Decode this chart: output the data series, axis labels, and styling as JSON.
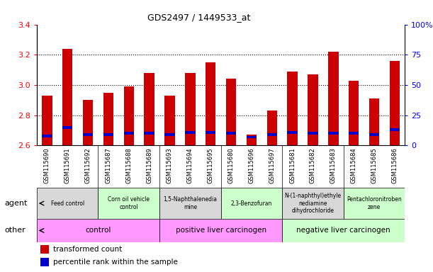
{
  "title": "GDS2497 / 1449533_at",
  "samples": [
    "GSM115690",
    "GSM115691",
    "GSM115692",
    "GSM115687",
    "GSM115688",
    "GSM115689",
    "GSM115693",
    "GSM115694",
    "GSM115695",
    "GSM115680",
    "GSM115696",
    "GSM115697",
    "GSM115681",
    "GSM115682",
    "GSM115683",
    "GSM115684",
    "GSM115685",
    "GSM115686"
  ],
  "transformed_count": [
    2.93,
    3.24,
    2.9,
    2.95,
    2.99,
    3.08,
    2.93,
    3.08,
    3.15,
    3.04,
    2.67,
    2.83,
    3.09,
    3.07,
    3.22,
    3.03,
    2.91,
    3.16
  ],
  "percentile_rank_pct": [
    8,
    15,
    9,
    9,
    10,
    10,
    9,
    11,
    11,
    10,
    7,
    9,
    11,
    10,
    10,
    10,
    9,
    13
  ],
  "ymin": 2.6,
  "ymax": 3.4,
  "yticks_left": [
    2.6,
    2.8,
    3.0,
    3.2,
    3.4
  ],
  "yticks_right": [
    0,
    25,
    50,
    75,
    100
  ],
  "bar_color": "#cc0000",
  "percentile_color": "#0000cc",
  "agent_groups": [
    {
      "label": "Feed control",
      "start": 0,
      "end": 3,
      "color": "#d8d8d8"
    },
    {
      "label": "Corn oil vehicle\ncontrol",
      "start": 3,
      "end": 6,
      "color": "#ccffcc"
    },
    {
      "label": "1,5-Naphthalenedia\nmine",
      "start": 6,
      "end": 9,
      "color": "#d8d8d8"
    },
    {
      "label": "2,3-Benzofuran",
      "start": 9,
      "end": 12,
      "color": "#ccffcc"
    },
    {
      "label": "N-(1-naphthyl)ethyle\nnediamine\ndihydrochloride",
      "start": 12,
      "end": 15,
      "color": "#d8d8d8"
    },
    {
      "label": "Pentachloronitroben\nzene",
      "start": 15,
      "end": 18,
      "color": "#ccffcc"
    }
  ],
  "other_groups": [
    {
      "label": "control",
      "start": 0,
      "end": 6,
      "color": "#ff99ff"
    },
    {
      "label": "positive liver carcinogen",
      "start": 6,
      "end": 12,
      "color": "#ff99ff"
    },
    {
      "label": "negative liver carcinogen",
      "start": 12,
      "end": 18,
      "color": "#ccffcc"
    }
  ],
  "legend_red": "transformed count",
  "legend_blue": "percentile rank within the sample",
  "agent_label": "agent",
  "other_label": "other",
  "xtick_bg": "#d8d8d8"
}
